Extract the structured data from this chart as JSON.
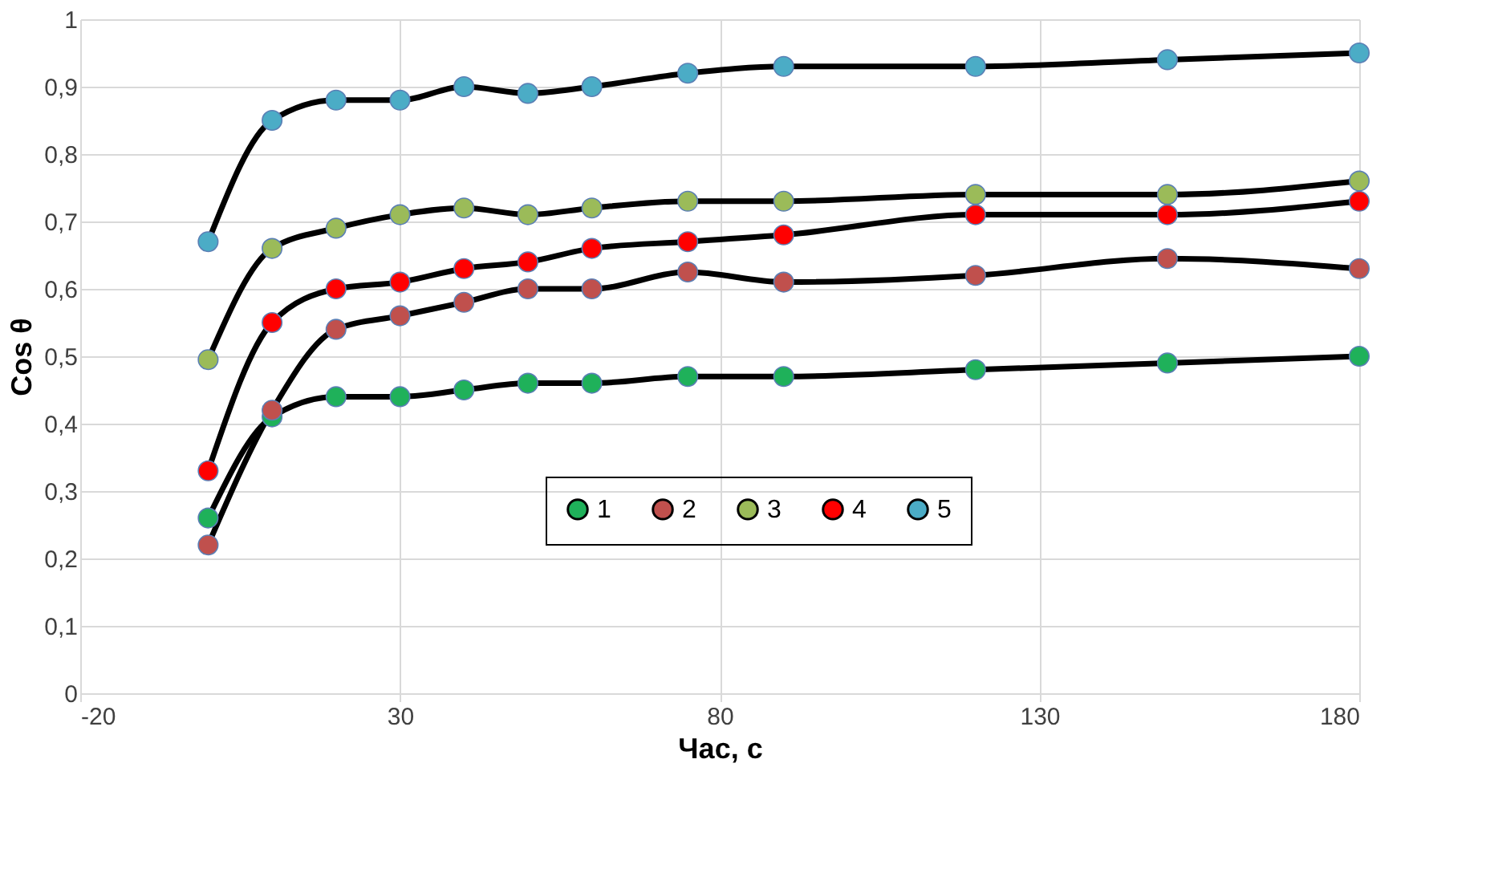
{
  "chart_data": {
    "type": "line",
    "xlabel": "Час, с",
    "ylabel": "Cos θ",
    "x": [
      0,
      10,
      20,
      30,
      40,
      50,
      60,
      75,
      90,
      120,
      150,
      180
    ],
    "xlim": [
      -20,
      180
    ],
    "xticks": [
      -20,
      30,
      80,
      130,
      180
    ],
    "ylim": [
      0,
      1
    ],
    "yticks": [
      0,
      {
        "value": 0.1,
        "label": "0,1"
      },
      {
        "value": 0.2,
        "label": "0,2"
      },
      {
        "value": 0.3,
        "label": "0,3"
      },
      {
        "value": 0.4,
        "label": "0,4"
      },
      {
        "value": 0.5,
        "label": "0,5"
      },
      {
        "value": 0.6,
        "label": "0,6"
      },
      {
        "value": 0.7,
        "label": "0,7"
      },
      {
        "value": 0.8,
        "label": "0,8"
      },
      {
        "value": 0.9,
        "label": "0,9"
      },
      1
    ],
    "grid": true,
    "legend": "bottom right",
    "marker": "circle",
    "line_style": "solid",
    "series": [
      {
        "name": "1",
        "color": "#1fb15a",
        "values": [
          0.26,
          0.41,
          0.44,
          0.44,
          0.45,
          0.46,
          0.46,
          0.47,
          0.47,
          0.48,
          0.49,
          0.5
        ]
      },
      {
        "name": "2",
        "color": "#c0504d",
        "values": [
          0.22,
          0.42,
          0.54,
          0.56,
          0.58,
          0.6,
          0.6,
          0.625,
          0.61,
          0.62,
          0.645,
          0.63
        ]
      },
      {
        "name": "3",
        "color": "#9bbb59",
        "values": [
          0.495,
          0.66,
          0.69,
          0.71,
          0.72,
          0.71,
          0.72,
          0.73,
          0.73,
          0.74,
          0.74,
          0.76
        ]
      },
      {
        "name": "4",
        "color": "#ff0000",
        "values": [
          0.33,
          0.55,
          0.6,
          0.61,
          0.63,
          0.64,
          0.66,
          0.67,
          0.68,
          0.71,
          0.71,
          0.73
        ]
      },
      {
        "name": "5",
        "color": "#4bacc6",
        "values": [
          0.67,
          0.85,
          0.88,
          0.88,
          0.9,
          0.89,
          0.9,
          0.92,
          0.93,
          0.93,
          0.94,
          0.95
        ]
      }
    ]
  }
}
